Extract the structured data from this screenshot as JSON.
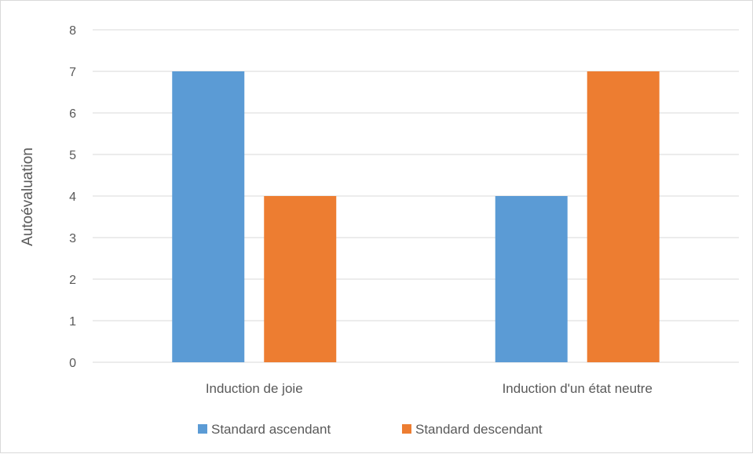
{
  "chart_data": {
    "type": "bar",
    "title": "",
    "xlabel": "",
    "ylabel": "Autoévaluation",
    "ylim": [
      0,
      8
    ],
    "yticks": [
      0,
      1,
      2,
      3,
      4,
      5,
      6,
      7,
      8
    ],
    "categories": [
      "Induction de joie",
      "Induction d'un état neutre"
    ],
    "series": [
      {
        "name": "Standard ascendant",
        "values": [
          7,
          4
        ],
        "color": "#5b9bd5"
      },
      {
        "name": "Standard descendant",
        "values": [
          4,
          7
        ],
        "color": "#ed7d31"
      }
    ],
    "grid": true,
    "legend_position": "bottom",
    "gridline_color": "#d9d9d9",
    "text_color": "#595959"
  }
}
